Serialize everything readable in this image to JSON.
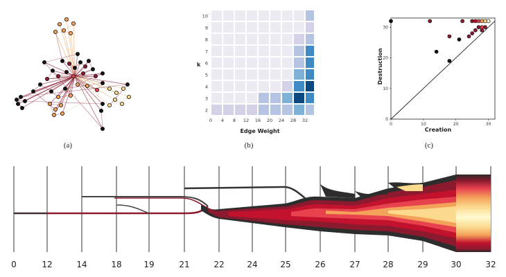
{
  "captions": {
    "a": "(a)",
    "b": "(b)",
    "c": "(c)"
  },
  "heatmap": {
    "xlabel": "Edge Weight",
    "ylabel": "k",
    "x_ticks": [
      "0",
      "4",
      "8",
      "12",
      "16",
      "20",
      "24",
      "28",
      "32"
    ],
    "y_ticks": [
      "2",
      "3",
      "4",
      "5",
      "6",
      "7",
      "8",
      "9",
      "10"
    ],
    "levels_rows_bottom_to_top": [
      [
        1,
        1,
        1,
        1,
        2,
        2,
        2,
        3,
        2
      ],
      [
        0,
        0,
        0,
        0,
        2,
        2,
        3,
        5,
        4
      ],
      [
        0,
        0,
        0,
        0,
        0,
        0,
        1,
        4,
        5
      ],
      [
        0,
        0,
        0,
        0,
        0,
        0,
        0,
        3,
        4
      ],
      [
        0,
        0,
        0,
        0,
        0,
        0,
        0,
        2,
        4
      ],
      [
        0,
        0,
        0,
        0,
        0,
        0,
        0,
        2,
        4
      ],
      [
        0,
        0,
        0,
        0,
        0,
        0,
        0,
        1,
        2
      ],
      [
        0,
        0,
        0,
        0,
        0,
        0,
        0,
        0,
        1
      ],
      [
        0,
        0,
        0,
        0,
        0,
        0,
        0,
        0,
        2
      ]
    ],
    "palette": [
      "#ecebf3",
      "#d3d2e8",
      "#b4c4e2",
      "#7fb0d8",
      "#3f8ac4",
      "#0b4a80"
    ]
  },
  "chart_data": {
    "type": "scatter",
    "title": "",
    "xlabel": "Creation",
    "ylabel": "Destruction",
    "xlim": [
      0,
      32
    ],
    "ylim": [
      0,
      33
    ],
    "x_ticks": [
      "0",
      "10",
      "20",
      "30"
    ],
    "y_ticks": [
      "0",
      "10",
      "20",
      "30"
    ],
    "diagonal": true,
    "points": [
      {
        "x": 0,
        "y": 32,
        "c": "#111111"
      },
      {
        "x": 12,
        "y": 32,
        "c": "#8b1a2e"
      },
      {
        "x": 14,
        "y": 22,
        "c": "#111111"
      },
      {
        "x": 18,
        "y": 19,
        "c": "#111111"
      },
      {
        "x": 18,
        "y": 27,
        "c": "#8b1a2e"
      },
      {
        "x": 21,
        "y": 26,
        "c": "#111111"
      },
      {
        "x": 22,
        "y": 32,
        "c": "#8b1a2e"
      },
      {
        "x": 24,
        "y": 27,
        "c": "#8b1a2e"
      },
      {
        "x": 25,
        "y": 28,
        "c": "#8b1a2e"
      },
      {
        "x": 26,
        "y": 29,
        "c": "#8b1a2e"
      },
      {
        "x": 27,
        "y": 30,
        "c": "#8b1a2e"
      },
      {
        "x": 28,
        "y": 29,
        "c": "#8b1a2e"
      },
      {
        "x": 29,
        "y": 30,
        "c": "#8b1a2e"
      },
      {
        "x": 28,
        "y": 30,
        "c": "#e8424f"
      },
      {
        "x": 25,
        "y": 32,
        "c": "#8b1a2e"
      },
      {
        "x": 26,
        "y": 32,
        "c": "#c2122e"
      },
      {
        "x": 27,
        "y": 32,
        "c": "#e8424f"
      },
      {
        "x": 28,
        "y": 32,
        "c": "#f4a25a"
      },
      {
        "x": 29,
        "y": 32,
        "c": "#fbd98d"
      },
      {
        "x": 30,
        "y": 32,
        "c": "#fffbd0"
      }
    ]
  },
  "timeline": {
    "labels": [
      "0",
      "12",
      "14",
      "18",
      "19",
      "21",
      "22",
      "24",
      "25",
      "26",
      "27",
      "28",
      "29",
      "30",
      "32"
    ]
  }
}
